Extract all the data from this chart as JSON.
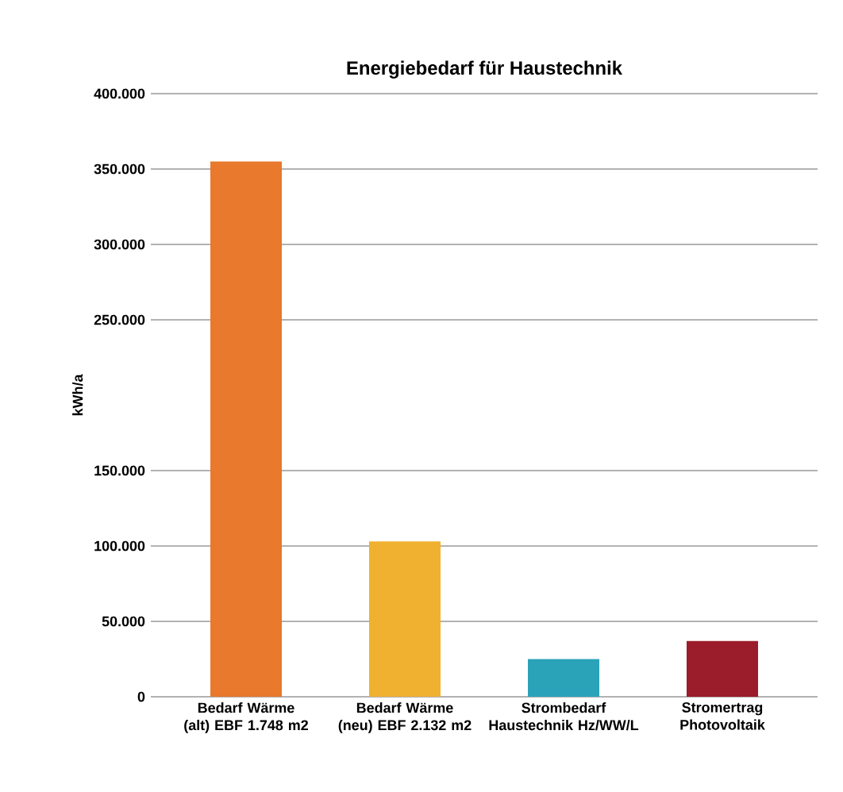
{
  "chart_data": {
    "type": "bar",
    "title": "Energiebedarf für Haustechnik",
    "ylabel": "kWh/a",
    "categories": [
      "Bedarf Wärme (alt) EBF 1.748 m2",
      "Bedarf Wärme (neu) EBF 2.132 m2",
      "Strombedarf Haustechnik Hz/WW/L",
      "Stromertrag Photovoltaik"
    ],
    "values": [
      355000,
      103000,
      25000,
      37000
    ],
    "colors": [
      "#e8792d",
      "#f0b030",
      "#2aa3b8",
      "#9b1c2a"
    ],
    "ylim": [
      0,
      400000
    ],
    "yticks": [
      {
        "value": 0,
        "label": "0"
      },
      {
        "value": 50000,
        "label": "50.000"
      },
      {
        "value": 100000,
        "label": "100.000"
      },
      {
        "value": 150000,
        "label": "150.000"
      },
      {
        "value": 250000,
        "label": "250.000"
      },
      {
        "value": 300000,
        "label": "300.000"
      },
      {
        "value": 350000,
        "label": "350.000"
      },
      {
        "value": 400000,
        "label": "400.000"
      }
    ],
    "grid": "y"
  }
}
